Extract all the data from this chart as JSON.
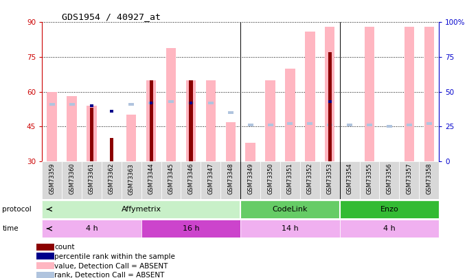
{
  "title": "GDS1954 / 40927_at",
  "samples": [
    "GSM73359",
    "GSM73360",
    "GSM73361",
    "GSM73362",
    "GSM73363",
    "GSM73344",
    "GSM73345",
    "GSM73346",
    "GSM73347",
    "GSM73348",
    "GSM73349",
    "GSM73350",
    "GSM73351",
    "GSM73352",
    "GSM73353",
    "GSM73354",
    "GSM73355",
    "GSM73356",
    "GSM73357",
    "GSM73358"
  ],
  "value_absent": [
    60,
    58,
    54,
    null,
    50,
    65,
    79,
    65,
    65,
    47,
    38,
    65,
    70,
    86,
    88,
    null,
    88,
    null,
    88,
    88
  ],
  "rank_absent": [
    41,
    41,
    null,
    null,
    41,
    42,
    43,
    42,
    42,
    35,
    26,
    26,
    27,
    27,
    26,
    26,
    26,
    25,
    26,
    27
  ],
  "count": [
    null,
    null,
    53,
    40,
    null,
    65,
    null,
    65,
    null,
    null,
    null,
    null,
    null,
    null,
    77,
    null,
    null,
    null,
    null,
    null
  ],
  "pct_rank": [
    null,
    null,
    40,
    36,
    null,
    42,
    null,
    42,
    null,
    null,
    null,
    null,
    null,
    null,
    43,
    null,
    null,
    null,
    null,
    null
  ],
  "ylim_left": [
    30,
    90
  ],
  "ylim_right": [
    0,
    100
  ],
  "yticks_left": [
    30,
    45,
    60,
    75,
    90
  ],
  "yticks_right": [
    0,
    25,
    50,
    75,
    100
  ],
  "protocols": [
    {
      "label": "Affymetrix",
      "start": 0,
      "end": 9,
      "color": "#c8f0c8"
    },
    {
      "label": "CodeLink",
      "start": 10,
      "end": 14,
      "color": "#66cc66"
    },
    {
      "label": "Enzo",
      "start": 15,
      "end": 19,
      "color": "#33bb33"
    }
  ],
  "times": [
    {
      "label": "4 h",
      "start": 0,
      "end": 4,
      "color": "#f0b0f0"
    },
    {
      "label": "16 h",
      "start": 5,
      "end": 9,
      "color": "#cc44cc"
    },
    {
      "label": "14 h",
      "start": 10,
      "end": 14,
      "color": "#f0b0f0"
    },
    {
      "label": "4 h",
      "start": 15,
      "end": 19,
      "color": "#f0b0f0"
    }
  ],
  "color_count": "#8b0000",
  "color_pct_rank": "#00008b",
  "color_value_absent": "#ffb6c1",
  "color_rank_absent": "#b0c4de",
  "left_axis_color": "#cc0000",
  "right_axis_color": "#0000cc",
  "bg_color": "#ffffff",
  "tick_label_bg": "#d8d8d8"
}
